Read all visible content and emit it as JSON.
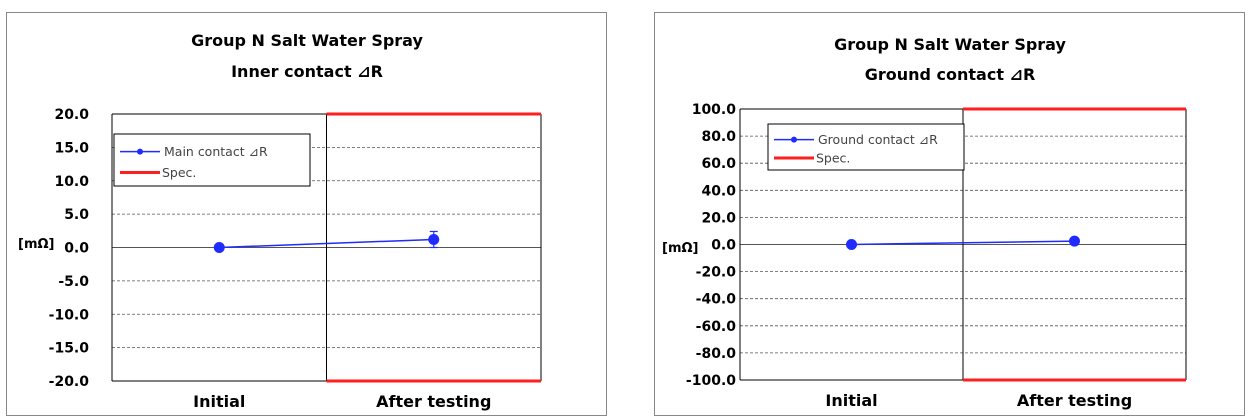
{
  "chart_data": [
    {
      "type": "line",
      "title": "Group N  Salt Water Spray",
      "subtitle": "Inner contact ⊿R",
      "ylabel": "[mΩ]",
      "xlabel": "",
      "categories": [
        "Initial",
        "After testing"
      ],
      "ylim": [
        -20,
        20
      ],
      "yticks": [
        20,
        15,
        10,
        5,
        0,
        -5,
        -10,
        -15,
        -20
      ],
      "ytick_labels": [
        "20.0",
        "15.0",
        "10.0",
        "5.0",
        "0.0",
        "-5.0",
        "-10.0",
        "-15.0",
        "-20.0"
      ],
      "grid": true,
      "legend_position": "top-left",
      "series": [
        {
          "name": "Main contact ⊿R",
          "values": [
            0.0,
            1.2
          ],
          "error": [
            0,
            1.2
          ],
          "color": "#1f2bff"
        }
      ],
      "spec": {
        "name": "Spec.",
        "after_testing_limits": [
          20,
          -20
        ],
        "color": "#ff1f1f"
      }
    },
    {
      "type": "line",
      "title": "Group N  Salt Water Spray",
      "subtitle": "Ground contact ⊿R",
      "ylabel": "[mΩ]",
      "xlabel": "",
      "categories": [
        "Initial",
        "After testing"
      ],
      "ylim": [
        -100,
        100
      ],
      "yticks": [
        100,
        80,
        60,
        40,
        20,
        0,
        -20,
        -40,
        -60,
        -80,
        -100
      ],
      "ytick_labels": [
        "100.0",
        "80.0",
        "60.0",
        "40.0",
        "20.0",
        "0.0",
        "-20.0",
        "-40.0",
        "-60.0",
        "-80.0",
        "-100.0"
      ],
      "grid": true,
      "legend_position": "top-left",
      "series": [
        {
          "name": "Ground contact ⊿R",
          "values": [
            0.0,
            2.5
          ],
          "color": "#1f2bff"
        }
      ],
      "spec": {
        "name": "Spec.",
        "after_testing_limits": [
          100,
          -100
        ],
        "color": "#ff1f1f"
      }
    }
  ]
}
